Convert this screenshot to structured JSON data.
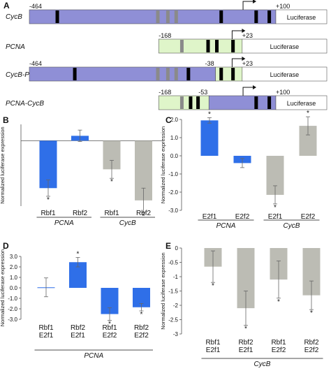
{
  "colors": {
    "blue": "#2f6fe8",
    "gray": "#bcbcb4",
    "cycb_box": "#8f8fd6",
    "pcna_box": "#dff5c9",
    "bar_dark": "#000000",
    "bar_light": "#8a8a8a",
    "axis": "#555555",
    "error": "#666666"
  },
  "panel_a": {
    "letter": "A",
    "rows": [
      {
        "name": "CycB",
        "segments": [
          {
            "kind": "cycb",
            "from": -464,
            "to": 100
          }
        ],
        "labels": [
          {
            "text": "-464",
            "pos": -464
          },
          {
            "text": "+100",
            "pos": 100
          }
        ],
        "light_sites": [
          -170,
          -147,
          -128
        ],
        "dark_sites": [
          -400,
          -25,
          55,
          85
        ],
        "tss": 25,
        "reporter": "Luciferase"
      },
      {
        "name": "PCNA",
        "segments": [
          {
            "kind": "pcna",
            "from": -168,
            "to": 23
          }
        ],
        "labels": [
          {
            "text": "-168",
            "pos": -168
          },
          {
            "text": "+23",
            "pos": 23
          }
        ],
        "light_sites": [
          -115
        ],
        "dark_sites": [
          -55,
          -35,
          2
        ],
        "tss": 0,
        "reporter": "Luciferase"
      },
      {
        "name": "CycB-PCNA",
        "segments": [
          {
            "kind": "cycb",
            "from": -464,
            "to": -38
          },
          {
            "kind": "pcna",
            "from": -38,
            "to": 23
          }
        ],
        "labels": [
          {
            "text": "-464",
            "pos": -464
          },
          {
            "text": "-38",
            "pos": -38
          },
          {
            "text": "+23",
            "pos": 23
          }
        ],
        "light_sites": [
          -170,
          -147,
          -128
        ],
        "dark_sites": [
          -360,
          -100,
          -25,
          2
        ],
        "tss": 0,
        "reporter": "Luciferase"
      },
      {
        "name": "PCNA-CycB",
        "segments": [
          {
            "kind": "pcna",
            "from": -168,
            "to": -53
          },
          {
            "kind": "cycb",
            "from": -53,
            "to": 100
          }
        ],
        "labels": [
          {
            "text": "-168",
            "pos": -168
          },
          {
            "text": "-53",
            "pos": -53
          },
          {
            "text": "+100",
            "pos": 100
          }
        ],
        "light_sites": [
          -115
        ],
        "dark_sites": [
          -95,
          -78,
          55,
          85
        ],
        "tss": 25,
        "reporter": "Luciferase"
      }
    ]
  },
  "chart_data": [
    {
      "panel": "B",
      "type": "bar",
      "ylabel": "Normalized luciferase expression",
      "ylim": [
        -4,
        1
      ],
      "ticks": [],
      "categories": [
        "Rbf1",
        "Rbf2",
        "Rbf1",
        "Rbf2"
      ],
      "category_line2": [
        "",
        "",
        "",
        ""
      ],
      "groups": [
        {
          "label": "PCNA",
          "span": [
            0,
            1
          ]
        },
        {
          "label": "CycB",
          "span": [
            2,
            3
          ]
        }
      ],
      "values": [
        -2.9,
        0.3,
        -1.75,
        -3.65
      ],
      "errors": [
        0.5,
        0.35,
        0.55,
        0.75
      ],
      "colors": [
        "blue",
        "blue",
        "gray",
        "gray"
      ],
      "asterisks": [
        true,
        false,
        true,
        true
      ],
      "grid": false
    },
    {
      "panel": "C",
      "type": "bar",
      "ylabel": "Normalized luciferase expression",
      "ylim": [
        -3,
        2
      ],
      "ticks": [
        "2.0",
        "1.0",
        "0.0",
        "-1.0",
        "-2.0",
        "-3.0"
      ],
      "categories": [
        "E2f1",
        "E2f2",
        "E2f1",
        "E2f2"
      ],
      "category_line2": [
        "",
        "",
        "",
        ""
      ],
      "groups": [
        {
          "label": "PCNA",
          "span": [
            0,
            1
          ]
        },
        {
          "label": "CycB",
          "span": [
            2,
            3
          ]
        }
      ],
      "values": [
        1.95,
        -0.4,
        -2.15,
        1.65
      ],
      "errors": [
        0.15,
        0.25,
        0.5,
        0.5
      ],
      "colors": [
        "blue",
        "blue",
        "gray",
        "gray"
      ],
      "asterisks": [
        true,
        false,
        true,
        true
      ],
      "grid": false
    },
    {
      "panel": "D",
      "type": "bar",
      "ylabel": "Normalized luciferase expression",
      "ylim": [
        -3,
        3
      ],
      "ticks": [
        "3.0",
        "2.0",
        "1.0",
        "0.0",
        "-1.0",
        "-2.0",
        "-3.0"
      ],
      "categories": [
        "Rbf1",
        "Rbf2",
        "Rbf1",
        "Rbf2"
      ],
      "category_line2": [
        "E2f1",
        "E2f1",
        "E2f2",
        "E2f2"
      ],
      "groups": [
        {
          "label": "PCNA",
          "span": [
            0,
            3
          ]
        }
      ],
      "values": [
        0.05,
        2.45,
        -2.5,
        -1.85
      ],
      "errors": [
        0.9,
        0.45,
        0.6,
        0.35
      ],
      "colors": [
        "blue",
        "blue",
        "blue",
        "blue"
      ],
      "asterisks": [
        false,
        true,
        true,
        true
      ],
      "grid": false
    },
    {
      "panel": "E",
      "type": "bar",
      "ylabel": "Normalized luciferase expression",
      "ylim": [
        -3,
        0
      ],
      "ticks": [
        "0",
        "-0.5",
        "-1",
        "-1.5",
        "-2",
        "-2.5",
        "-3"
      ],
      "categories": [
        "Rbf1",
        "Rbf2",
        "Rbf1",
        "Rbf2"
      ],
      "category_line2": [
        "E2f1",
        "E2f1",
        "E2f2",
        "E2f2"
      ],
      "groups": [
        {
          "label": "CycB",
          "span": [
            0,
            3
          ]
        }
      ],
      "values": [
        -0.65,
        -2.1,
        -1.1,
        -1.65
      ],
      "errors": [
        0.55,
        0.6,
        0.65,
        0.5
      ],
      "colors": [
        "gray",
        "gray",
        "gray",
        "gray"
      ],
      "asterisks": [
        true,
        true,
        true,
        true
      ],
      "grid": false
    }
  ]
}
